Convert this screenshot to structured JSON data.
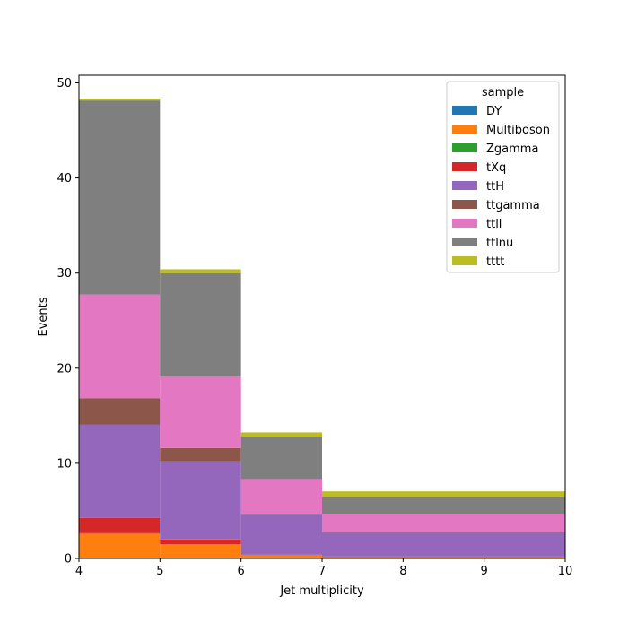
{
  "chart_data": {
    "type": "bar",
    "stacked": true,
    "histogram": true,
    "xlabel": "Jet multiplicity",
    "ylabel": "Events",
    "xlim": [
      4,
      10
    ],
    "ylim": [
      0,
      50.8
    ],
    "xticks": [
      "4",
      "5",
      "6",
      "7",
      "8",
      "9",
      "10"
    ],
    "yticks": [
      "0",
      "10",
      "20",
      "30",
      "40",
      "50"
    ],
    "bin_edges": [
      4,
      5,
      6,
      7,
      10
    ],
    "legend": {
      "title": "sample",
      "placement": "top-right"
    },
    "grid": false,
    "series": [
      {
        "name": "DY",
        "color": "#1f77b4",
        "values": [
          0.05,
          0.02,
          0.0,
          0.0
        ]
      },
      {
        "name": "Multiboson",
        "color": "#ff7f0e",
        "values": [
          2.55,
          1.45,
          0.35,
          0.15
        ]
      },
      {
        "name": "Zgamma",
        "color": "#2ca02c",
        "values": [
          0.05,
          0.03,
          0.0,
          0.0
        ]
      },
      {
        "name": "tXq",
        "color": "#d62728",
        "values": [
          1.6,
          0.5,
          0.05,
          0.05
        ]
      },
      {
        "name": "ttH",
        "color": "#9467bd",
        "values": [
          9.8,
          8.2,
          4.2,
          2.5
        ]
      },
      {
        "name": "ttgamma",
        "color": "#8c564b",
        "values": [
          2.8,
          1.4,
          0.05,
          0.05
        ]
      },
      {
        "name": "ttll",
        "color": "#e377c2",
        "values": [
          10.9,
          7.5,
          3.7,
          1.9
        ]
      },
      {
        "name": "ttlnu",
        "color": "#7f7f7f",
        "values": [
          20.4,
          10.9,
          4.4,
          1.8
        ]
      },
      {
        "name": "tttt",
        "color": "#bcbd22",
        "values": [
          0.2,
          0.4,
          0.5,
          0.6
        ]
      }
    ]
  }
}
